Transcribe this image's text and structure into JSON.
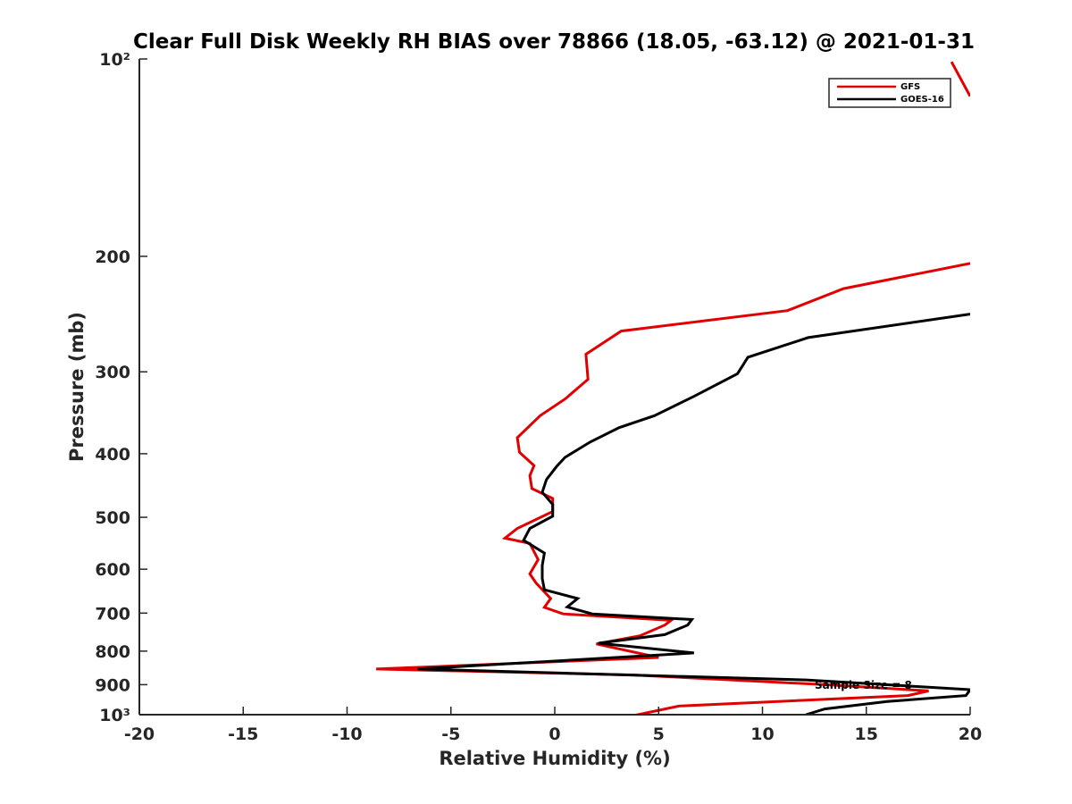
{
  "chart_data": {
    "type": "line",
    "title": "Clear Full Disk Weekly RH BIAS over 78866 (18.05, -63.12) @ 2021-01-31",
    "xlabel": "Relative Humidity (%)",
    "ylabel": "Pressure (mb)",
    "xlim": [
      -20,
      20
    ],
    "ylim": [
      100,
      1000
    ],
    "y_scale": "log",
    "y_reversed": true,
    "x_ticks": [
      -20,
      -15,
      -10,
      -5,
      0,
      5,
      10,
      15,
      20
    ],
    "x_tick_labels": [
      "-20",
      "-15",
      "-10",
      "-5",
      "0",
      "5",
      "10",
      "15",
      "20"
    ],
    "y_ticks": [
      100,
      200,
      300,
      400,
      500,
      600,
      700,
      800,
      900,
      1000
    ],
    "y_tick_labels": [
      "10²",
      "200",
      "300",
      "400",
      "500",
      "600",
      "700",
      "800",
      "900",
      "10³"
    ],
    "grid": false,
    "legend": "top-right",
    "annotation": "Sample Size = 8",
    "series": [
      {
        "name": "GFS",
        "color": "#e00000",
        "x": [
          20,
          13.9,
          11.2,
          3.2,
          1.5,
          1.6,
          0.5,
          -0.7,
          -1.8,
          -1.7,
          -1.0,
          -1.2,
          -1.1,
          -0.1,
          -0.1,
          -1.8,
          -2.4,
          -1.2,
          -0.8,
          -1.2,
          -0.9,
          -0.2,
          -0.5,
          0.4,
          5.6,
          5.3,
          4.1,
          2.0,
          5.0,
          -8.6,
          3.8,
          13.0,
          18.0,
          17.0,
          6.0,
          3.8
        ],
        "y": [
          205,
          224,
          242,
          260,
          282,
          308,
          330,
          350,
          378,
          398,
          417,
          432,
          452,
          468,
          490,
          520,
          538,
          548,
          580,
          610,
          630,
          665,
          686,
          702,
          718,
          730,
          758,
          780,
          818,
          852,
          870,
          900,
          920,
          935,
          970,
          1003
        ]
      },
      {
        "name": "GOES-16",
        "color": "#000000",
        "x": [
          20,
          12.2,
          9.3,
          8.8,
          6.7,
          4.8,
          3.1,
          1.7,
          0.5,
          0.1,
          -0.4,
          -0.6,
          -0.1,
          -0.1,
          -1.2,
          -1.5,
          -0.5,
          -0.6,
          -0.6,
          -0.5,
          1.1,
          0.6,
          1.8,
          6.6,
          6.4,
          5.3,
          2.1,
          6.7,
          -6.6,
          12.1,
          20,
          19.8,
          16.0,
          13.0,
          12.1
        ],
        "y": [
          245,
          266,
          285,
          302,
          327,
          350,
          365,
          384,
          405,
          418,
          438,
          458,
          478,
          498,
          520,
          542,
          567,
          592,
          620,
          645,
          665,
          685,
          702,
          716,
          730,
          755,
          778,
          805,
          852,
          885,
          916,
          935,
          955,
          980,
          1000
        ]
      },
      {
        "name": "",
        "color": "#e00000",
        "x": [
          19.1,
          20
        ],
        "y": [
          101,
          114
        ]
      }
    ]
  }
}
